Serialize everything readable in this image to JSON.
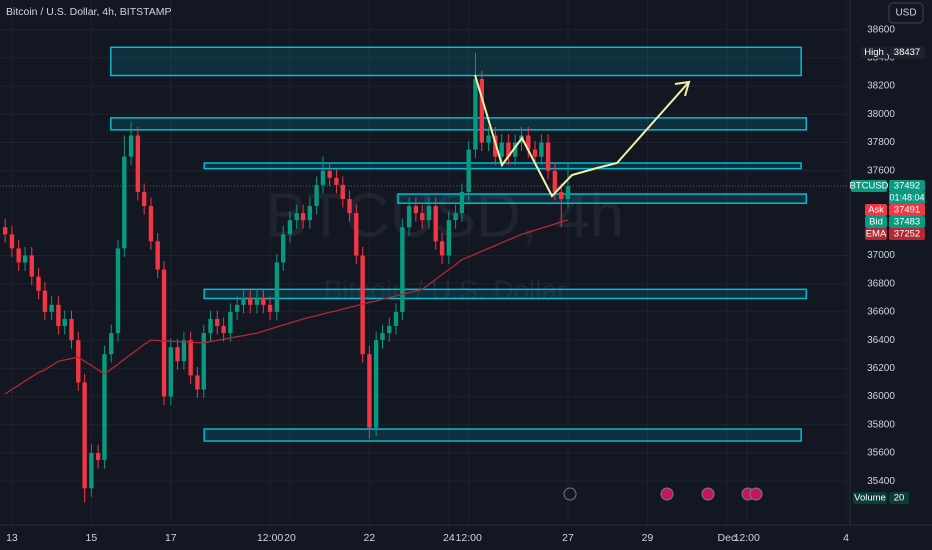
{
  "header": {
    "symbol_title": "Bitcoin / U.S. Dollar, 4h, BITSTAMP",
    "currency": "USD"
  },
  "watermark": {
    "symbol": "BTCUSD, 4h",
    "description": "Bitcoin / U.S. Dollar"
  },
  "chart_data": {
    "type": "candlestick",
    "x": [
      12.83,
      13,
      13.17,
      13.33,
      13.5,
      13.67,
      13.83,
      14,
      14.17,
      14.33,
      14.5,
      14.67,
      14.83,
      15,
      15.17,
      15.33,
      15.5,
      15.67,
      15.83,
      16,
      16.17,
      16.33,
      16.5,
      16.67,
      16.83,
      17,
      17.17,
      17.33,
      17.5,
      17.67,
      17.83,
      18,
      18.17,
      18.33,
      18.5,
      18.67,
      18.83,
      19,
      19.17,
      19.33,
      19.5,
      19.67,
      19.83,
      20,
      20.17,
      20.33,
      20.5,
      20.67,
      20.83,
      21,
      21.17,
      21.33,
      21.5,
      21.67,
      21.83,
      22,
      22.17,
      22.33,
      22.5,
      22.67,
      22.83,
      23,
      23.17,
      23.33,
      23.5,
      23.67,
      23.83,
      24,
      24.17,
      24.33,
      24.5,
      24.67,
      24.83,
      25,
      25.17,
      25.33,
      25.5,
      25.67,
      25.83,
      26,
      26.17,
      26.33,
      26.5,
      26.67,
      26.83,
      27
    ],
    "series": [
      {
        "name": "BTCUSD",
        "up_color": "#089981",
        "down_color": "#f23645",
        "open": [
          37200,
          37150,
          37050,
          36950,
          37000,
          36850,
          36750,
          36600,
          36650,
          36500,
          36550,
          36400,
          36100,
          35350,
          35600,
          35550,
          36300,
          36450,
          37050,
          37700,
          37850,
          37450,
          37350,
          37100,
          36900,
          36000,
          36350,
          36250,
          36400,
          36150,
          36050,
          36450,
          36550,
          36500,
          36450,
          36600,
          36650,
          36700,
          36650,
          36700,
          36650,
          36600,
          36950,
          37150,
          37250,
          37300,
          37250,
          37350,
          37500,
          37600,
          37550,
          37500,
          37400,
          37300,
          37000,
          36300,
          35780,
          36400,
          36450,
          36500,
          36600,
          37200,
          37350,
          37300,
          37250,
          37350,
          37100,
          37000,
          37250,
          37300,
          37450,
          37750,
          38250,
          37800,
          37850,
          37700,
          37800,
          37700,
          37800,
          37850,
          37750,
          37700,
          37800,
          37600,
          37450,
          37400
        ],
        "high": [
          37260,
          37210,
          37110,
          37060,
          37060,
          36910,
          36810,
          36710,
          36710,
          36610,
          36610,
          36460,
          36160,
          35660,
          35660,
          36360,
          36510,
          37110,
          37850,
          37950,
          37910,
          37510,
          37410,
          37160,
          36960,
          36410,
          36410,
          36460,
          36460,
          36210,
          36510,
          36610,
          36610,
          36560,
          36660,
          36710,
          36760,
          36760,
          36760,
          36760,
          36710,
          37010,
          37210,
          37310,
          37360,
          37360,
          37410,
          37560,
          37700,
          37660,
          37610,
          37560,
          37460,
          37360,
          37060,
          36360,
          36460,
          36510,
          36560,
          36660,
          37260,
          37410,
          37410,
          37360,
          37410,
          37410,
          37160,
          37310,
          37360,
          37510,
          37810,
          38437,
          38310,
          37910,
          37910,
          37860,
          37860,
          37860,
          37910,
          37910,
          37810,
          37860,
          37860,
          37660,
          37510,
          37660
        ],
        "low": [
          37090,
          36990,
          36890,
          36890,
          36790,
          36690,
          36540,
          36540,
          36440,
          36440,
          36340,
          36040,
          35250,
          35290,
          35490,
          35490,
          36240,
          36390,
          36990,
          37640,
          37390,
          37290,
          37040,
          36840,
          35940,
          35940,
          36190,
          36190,
          36090,
          35990,
          35990,
          36390,
          36440,
          36390,
          36390,
          36540,
          36590,
          36590,
          36590,
          36590,
          36540,
          36540,
          36890,
          37090,
          37190,
          37190,
          37190,
          37290,
          37440,
          37490,
          37440,
          37340,
          37240,
          36940,
          36240,
          35700,
          35720,
          36340,
          36390,
          36440,
          36540,
          37140,
          37240,
          37190,
          37190,
          37040,
          36940,
          36940,
          37190,
          37240,
          37390,
          37690,
          37740,
          37740,
          37640,
          37640,
          37640,
          37640,
          37740,
          37690,
          37640,
          37640,
          37540,
          37390,
          37200,
          37340
        ],
        "close": [
          37150,
          37050,
          36950,
          37000,
          36850,
          36750,
          36600,
          36650,
          36500,
          36550,
          36400,
          36100,
          35350,
          35600,
          35550,
          36300,
          36450,
          37050,
          37700,
          37850,
          37450,
          37350,
          37100,
          36900,
          36000,
          36350,
          36250,
          36400,
          36150,
          36050,
          36450,
          36550,
          36500,
          36450,
          36600,
          36650,
          36700,
          36650,
          36700,
          36650,
          36600,
          36950,
          37150,
          37250,
          37300,
          37250,
          37350,
          37500,
          37600,
          37550,
          37500,
          37400,
          37300,
          37000,
          36300,
          35780,
          36400,
          36450,
          36500,
          36600,
          37200,
          37350,
          37300,
          37250,
          37350,
          37100,
          37000,
          37250,
          37300,
          37450,
          37750,
          38250,
          37800,
          37850,
          37700,
          37800,
          37700,
          37800,
          37850,
          37750,
          37700,
          37800,
          37600,
          37450,
          37400,
          37492
        ]
      },
      {
        "name": "EMA",
        "type": "line",
        "color": "#b22833",
        "values": [
          36020,
          36050,
          36080,
          36110,
          36140,
          36170,
          36190,
          36220,
          36250,
          36260,
          36270,
          36280,
          36250,
          36220,
          36190,
          36160,
          36195,
          36230,
          36265,
          36300,
          36335,
          36370,
          36400,
          36397,
          36395,
          36392,
          36390,
          36388,
          36385,
          36382,
          36380,
          36389,
          36398,
          36406,
          36415,
          36424,
          36432,
          36441,
          36450,
          36464,
          36479,
          36493,
          36507,
          36521,
          36536,
          36550,
          36562,
          36573,
          36585,
          36597,
          36608,
          36620,
          36632,
          36643,
          36655,
          36667,
          36678,
          36690,
          36702,
          36713,
          36725,
          36737,
          36748,
          36760,
          36795,
          36830,
          36865,
          36900,
          36935,
          36970,
          36990,
          37010,
          37030,
          37050,
          37070,
          37090,
          37110,
          37130,
          37150,
          37165,
          37179,
          37194,
          37208,
          37223,
          37237,
          37252
        ]
      }
    ],
    "xlim": [
      12.7,
      34.1
    ],
    "ylim": [
      35090,
      38810
    ],
    "xticks": [
      13,
      15,
      17,
      {
        "value": 19.5,
        "label": "12:00"
      },
      20,
      22,
      24,
      {
        "value": 24.5,
        "label": "12:00"
      },
      27,
      29,
      {
        "value": 31,
        "label": "Dec"
      },
      {
        "value": 31.5,
        "label": "12:00"
      },
      {
        "value": 34,
        "label": "4"
      }
    ],
    "yticks": [
      35400,
      35600,
      35800,
      36000,
      36200,
      36400,
      36600,
      36800,
      37000,
      37600,
      37800,
      38000,
      38200,
      38400,
      38600
    ],
    "grid": true,
    "zones": [
      {
        "from": 38275,
        "to": 38475,
        "x": [
          15.49,
          32.87
        ]
      },
      {
        "from": 37890,
        "to": 37975,
        "x": [
          15.49,
          33.0
        ]
      },
      {
        "from": 37615,
        "to": 37655,
        "x": [
          17.84,
          32.87
        ]
      },
      {
        "from": 37370,
        "to": 37435,
        "x": [
          22.72,
          33.0
        ]
      },
      {
        "from": 36695,
        "to": 36760,
        "x": [
          17.84,
          33.0
        ]
      },
      {
        "from": 35685,
        "to": 35770,
        "x": [
          17.84,
          32.87
        ]
      }
    ],
    "zone_color": "#00bcd4",
    "price_tags": {
      "high": {
        "label": "High",
        "value": 38437
      },
      "last": {
        "label": "BTCUSD",
        "value": 37492,
        "countdown": "01:48:04"
      },
      "ask": {
        "label": "Ask",
        "value": 37491
      },
      "bid": {
        "label": "Bid",
        "value": 37483
      },
      "ema": {
        "label": "EMA",
        "value": 37252
      }
    },
    "volume": {
      "label": "Volume",
      "value": 20
    }
  }
}
